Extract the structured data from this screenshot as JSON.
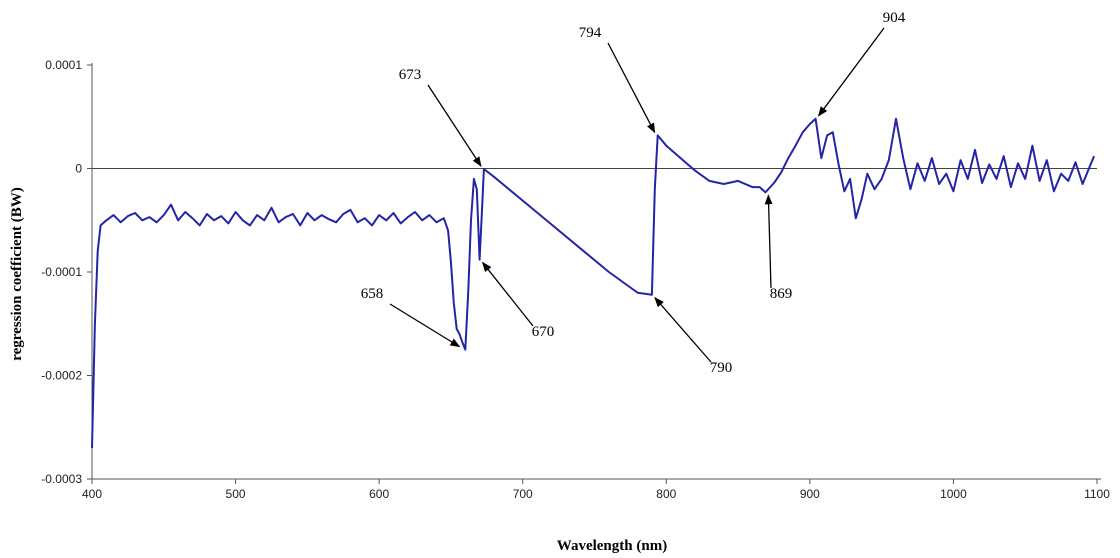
{
  "chart_data": {
    "type": "line",
    "xlabel": "Wavelength (nm)",
    "ylabel": "regression coefficient (BW)",
    "xlim": [
      400,
      1100
    ],
    "ylim": [
      -0.0003,
      0.0001
    ],
    "x_ticks": [
      400,
      500,
      600,
      700,
      800,
      900,
      1000,
      1100
    ],
    "x_tick_labels": [
      "400",
      "500",
      "600",
      "700",
      "800",
      "900",
      "1000",
      "1100"
    ],
    "y_ticks": [
      0.0001,
      0,
      -0.0001,
      -0.0002,
      -0.0003
    ],
    "y_tick_labels": [
      "0.0001",
      "0",
      "-0.0001",
      "-0.0002",
      "-0.0003"
    ],
    "zero_line": true,
    "grid": false,
    "series_color": "#2424a8",
    "series": [
      {
        "x": [
          400,
          402,
          404,
          406,
          410,
          415,
          420,
          425,
          430,
          435,
          440,
          445,
          450,
          455,
          460,
          465,
          470,
          475,
          480,
          485,
          490,
          495,
          500,
          505,
          510,
          515,
          520,
          525,
          530,
          535,
          540,
          545,
          550,
          555,
          560,
          565,
          570,
          575,
          580,
          585,
          590,
          595,
          600,
          605,
          610,
          615,
          620,
          625,
          630,
          635,
          640,
          645,
          648,
          650,
          652,
          654,
          656,
          658,
          660,
          662,
          664,
          666,
          668,
          670,
          672,
          673,
          680,
          700,
          720,
          740,
          760,
          780,
          790,
          792,
          794,
          800,
          810,
          820,
          830,
          840,
          850,
          860,
          865,
          869,
          875,
          880,
          885,
          890,
          895,
          900,
          904,
          908,
          912,
          916,
          920,
          924,
          928,
          932,
          936,
          940,
          945,
          950,
          955,
          960,
          965,
          970,
          975,
          980,
          985,
          990,
          995,
          1000,
          1005,
          1010,
          1015,
          1020,
          1025,
          1030,
          1035,
          1040,
          1045,
          1050,
          1055,
          1060,
          1065,
          1070,
          1075,
          1080,
          1085,
          1090,
          1095,
          1098
        ],
        "values": [
          -0.00027,
          -0.00015,
          -8e-05,
          -5.5e-05,
          -5e-05,
          -4.5e-05,
          -5.2e-05,
          -4.6e-05,
          -4.3e-05,
          -5e-05,
          -4.7e-05,
          -5.2e-05,
          -4.5e-05,
          -3.5e-05,
          -5e-05,
          -4.2e-05,
          -4.8e-05,
          -5.5e-05,
          -4.4e-05,
          -5e-05,
          -4.6e-05,
          -5.3e-05,
          -4.2e-05,
          -5e-05,
          -5.5e-05,
          -4.5e-05,
          -5e-05,
          -3.8e-05,
          -5.2e-05,
          -4.7e-05,
          -4.4e-05,
          -5.5e-05,
          -4.3e-05,
          -5e-05,
          -4.5e-05,
          -4.9e-05,
          -5.2e-05,
          -4.4e-05,
          -4e-05,
          -5.2e-05,
          -4.8e-05,
          -5.5e-05,
          -4.5e-05,
          -5e-05,
          -4.3e-05,
          -5.3e-05,
          -4.7e-05,
          -4.2e-05,
          -5e-05,
          -4.5e-05,
          -5.2e-05,
          -4.8e-05,
          -6e-05,
          -9e-05,
          -0.00013,
          -0.000155,
          -0.00016,
          -0.000168,
          -0.000175,
          -0.00012,
          -5e-05,
          -1e-05,
          -2e-05,
          -8.8e-05,
          -3e-05,
          -5e-07,
          -8e-06,
          -3.1e-05,
          -5.4e-05,
          -7.7e-05,
          -0.0001,
          -0.00012,
          -0.000122,
          -2e-05,
          3.2e-05,
          2.2e-05,
          1e-05,
          -2e-06,
          -1.2e-05,
          -1.5e-05,
          -1.2e-05,
          -1.8e-05,
          -1.8e-05,
          -2.3e-05,
          -1.4e-05,
          -4e-06,
          1e-05,
          2.2e-05,
          3.5e-05,
          4.3e-05,
          4.8e-05,
          1e-05,
          3.2e-05,
          3.5e-05,
          4e-06,
          -2.2e-05,
          -1e-05,
          -4.8e-05,
          -3e-05,
          -5e-06,
          -2e-05,
          -1e-05,
          8e-06,
          4.8e-05,
          1e-05,
          -2e-05,
          5e-06,
          -1.2e-05,
          1e-05,
          -1.5e-05,
          -5e-06,
          -2.2e-05,
          8e-06,
          -1e-05,
          1.8e-05,
          -1.4e-05,
          4e-06,
          -1e-05,
          1.2e-05,
          -1.8e-05,
          5e-06,
          -1e-05,
          2.2e-05,
          -1.2e-05,
          8e-06,
          -2.2e-05,
          -5e-06,
          -1.2e-05,
          6e-06,
          -1.5e-05,
          2e-06,
          1.2e-05
        ]
      }
    ],
    "annotations": [
      {
        "label": "658",
        "x": 658,
        "y": -0.000175
      },
      {
        "label": "670",
        "x": 670,
        "y": -8.8e-05
      },
      {
        "label": "673",
        "x": 673,
        "y": -5e-07
      },
      {
        "label": "790",
        "x": 790,
        "y": -0.000122
      },
      {
        "label": "794",
        "x": 794,
        "y": 3.2e-05
      },
      {
        "label": "869",
        "x": 869,
        "y": -2.3e-05
      },
      {
        "label": "904",
        "x": 904,
        "y": 4.8e-05
      }
    ]
  }
}
